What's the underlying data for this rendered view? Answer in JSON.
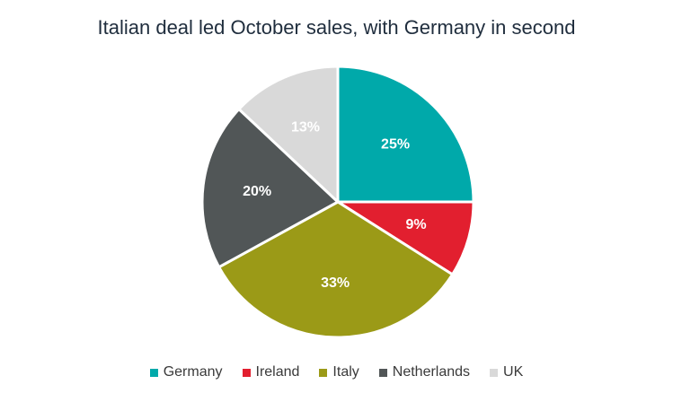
{
  "chart_data": {
    "type": "pie",
    "title": "Italian deal led October sales, with Germany in second",
    "categories": [
      "Germany",
      "Ireland",
      "Italy",
      "Netherlands",
      "UK"
    ],
    "values": [
      25,
      9,
      33,
      20,
      13
    ],
    "labels": [
      "25%",
      "9%",
      "33%",
      "20%",
      "13%"
    ],
    "colors": [
      "#00a9aa",
      "#e21f2f",
      "#9b9a17",
      "#515657",
      "#d9d9d9"
    ],
    "label_colors": [
      "#ffffff",
      "#ffffff",
      "#ffffff",
      "#ffffff",
      "#ffffff"
    ],
    "legend_position": "bottom",
    "start_angle_deg": 0,
    "direction": "clockwise"
  }
}
